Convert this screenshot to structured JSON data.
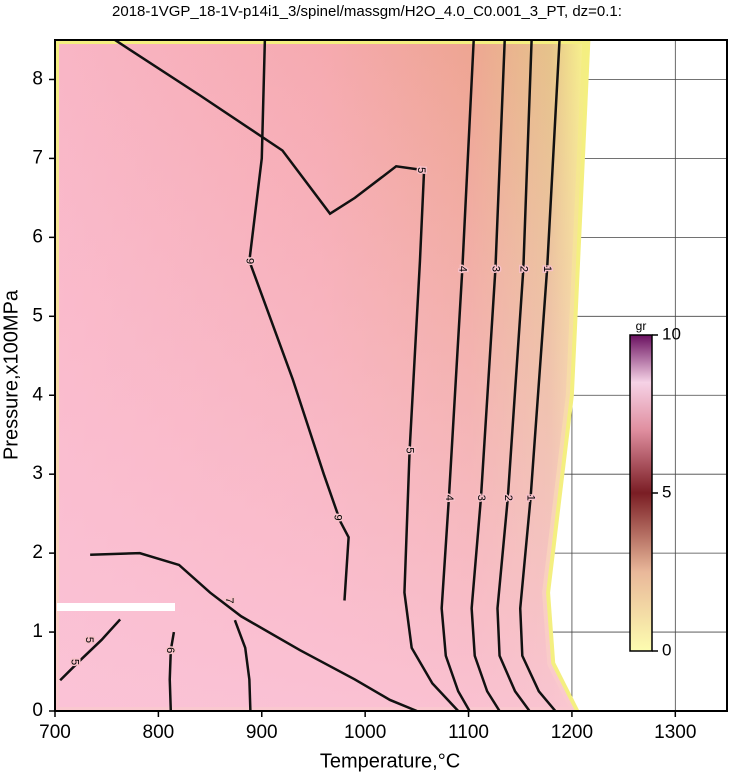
{
  "chart_data": {
    "type": "contour",
    "title": "2018-1VGP_18-1V-p14i1_3/spinel/massgm/H2O_4.0_C0.001_3_PT, dz=0.1:",
    "xlabel": "Temperature,°C",
    "ylabel": "Pressure,x100MPa",
    "xlim": [
      700,
      1350
    ],
    "ylim": [
      0,
      8.5
    ],
    "xticks": [
      700,
      800,
      900,
      1000,
      1100,
      1200,
      1300
    ],
    "yticks": [
      0,
      1,
      2,
      3,
      4,
      5,
      6,
      7,
      8
    ],
    "grid": true,
    "field_edge": {
      "x": [
        700,
        1214,
        1198,
        1175,
        1180,
        1203,
        700
      ],
      "y": [
        8.5,
        8.5,
        4,
        1.5,
        0.6,
        0,
        0
      ]
    },
    "contours": [
      {
        "level": 1,
        "x": [
          1188,
          1176,
          1160,
          1150,
          1152,
          1168,
          1184
        ],
        "y": [
          8.5,
          5.6,
          2.7,
          1.3,
          0.7,
          0.25,
          0
        ],
        "labels": [
          {
            "x": 1176,
            "y": 5.6
          },
          {
            "x": 1160,
            "y": 2.7
          }
        ]
      },
      {
        "level": 2,
        "x": [
          1161,
          1153,
          1138,
          1128,
          1130,
          1145,
          1159
        ],
        "y": [
          8.5,
          5.6,
          2.7,
          1.3,
          0.7,
          0.25,
          0
        ],
        "labels": [
          {
            "x": 1153,
            "y": 5.6
          },
          {
            "x": 1138,
            "y": 2.7
          }
        ]
      },
      {
        "level": 3,
        "x": [
          1135,
          1126,
          1112,
          1103,
          1106,
          1118,
          1130
        ],
        "y": [
          8.5,
          5.6,
          2.7,
          1.3,
          0.7,
          0.25,
          0
        ],
        "labels": [
          {
            "x": 1126,
            "y": 5.6
          },
          {
            "x": 1112,
            "y": 2.7
          }
        ]
      },
      {
        "level": 4,
        "x": [
          1105,
          1094,
          1081,
          1074,
          1078,
          1090,
          1101
        ],
        "y": [
          8.5,
          5.6,
          2.7,
          1.3,
          0.7,
          0.25,
          0
        ],
        "labels": [
          {
            "x": 1094,
            "y": 5.6
          },
          {
            "x": 1081,
            "y": 2.7
          }
        ]
      },
      {
        "level": 5,
        "x": [
          758,
          840,
          920,
          966,
          990,
          1030,
          1057,
          1053,
          1043,
          1038,
          1045,
          1065,
          1090
        ],
        "y": [
          8.5,
          7.8,
          7.1,
          6.3,
          6.5,
          6.9,
          6.85,
          5.7,
          3.3,
          1.5,
          0.8,
          0.35,
          0
        ],
        "labels": [
          {
            "x": 1054,
            "y": 6.85
          },
          {
            "x": 1043,
            "y": 3.3
          }
        ]
      },
      {
        "level": 9,
        "x": [
          903,
          900,
          888,
          930,
          960,
          976,
          984,
          980
        ],
        "y": [
          8.5,
          7.0,
          5.7,
          4.2,
          3.0,
          2.4,
          2.2,
          1.4
        ],
        "labels": [
          {
            "x": 888,
            "y": 5.7
          },
          {
            "x": 973,
            "y": 2.45
          }
        ]
      },
      {
        "level": 7,
        "x": [
          734,
          782,
          820,
          850,
          880,
          937,
          990,
          1024,
          1050
        ],
        "y": [
          1.98,
          2.0,
          1.85,
          1.5,
          1.2,
          0.77,
          0.4,
          0.14,
          0
        ],
        "labels": [
          {
            "x": 868,
            "y": 1.4
          }
        ]
      },
      {
        "level": 6,
        "x": [
          812,
          811,
          812,
          815
        ],
        "y": [
          0,
          0.4,
          0.77,
          1.0
        ],
        "labels": [
          {
            "x": 811,
            "y": 0.77
          }
        ]
      },
      {
        "level": 5,
        "x": [
          705,
          725,
          745,
          763
        ],
        "y": [
          0.39,
          0.65,
          0.9,
          1.16
        ],
        "labels": [
          {
            "x": 719,
            "y": 0.62
          },
          {
            "x": 733,
            "y": 0.9
          }
        ]
      },
      {
        "level": 6,
        "x": [
          874,
          884,
          888,
          889
        ],
        "y": [
          1.15,
          0.8,
          0.4,
          0
        ],
        "labels": []
      }
    ],
    "colorbar": {
      "label": "gr",
      "lim": [
        0,
        10
      ],
      "ticks": [
        0,
        5,
        10
      ]
    }
  }
}
